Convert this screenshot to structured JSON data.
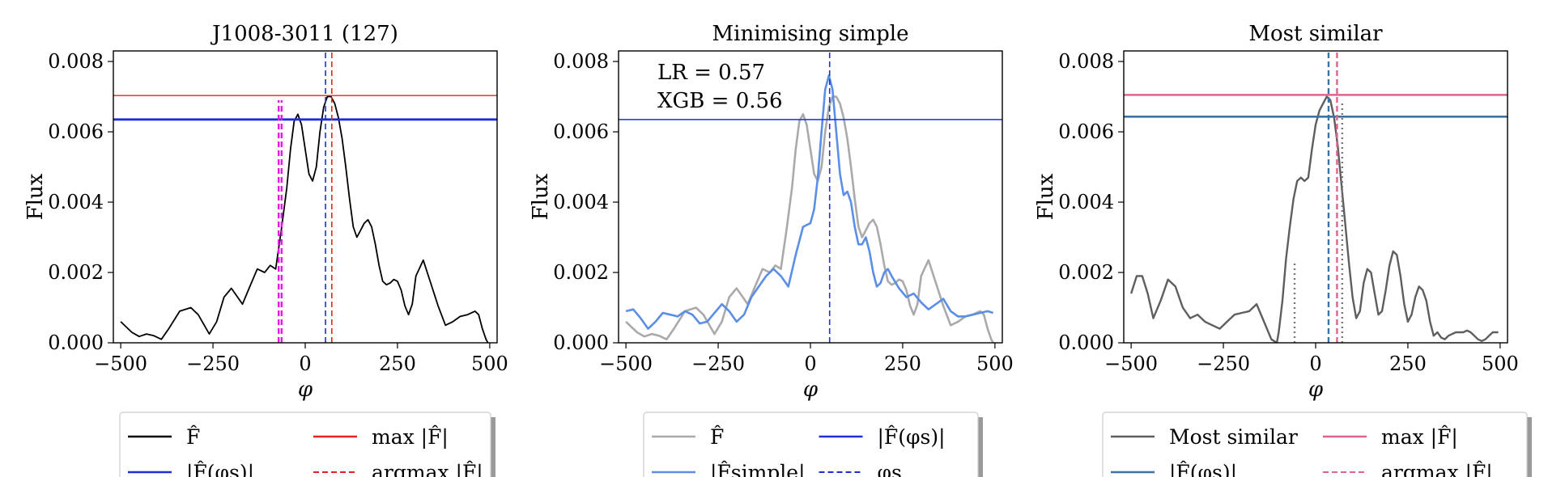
{
  "figure": {
    "panels": [
      {
        "title": "J1008-3011 (127)",
        "ylabel": "Flux",
        "xlabel": "φ",
        "annotations": [],
        "legend": {
          "items": [
            {
              "label": "F̂",
              "color": "#000000",
              "style": "solid"
            },
            {
              "label": "max |F̂|",
              "color": "#e8231f",
              "style": "solid"
            },
            {
              "label": "|F̂(φs)|",
              "color": "#1f2fd6",
              "style": "solid"
            },
            {
              "label": "argmax |F̂|",
              "color": "#e8231f",
              "style": "dashed"
            }
          ]
        }
      },
      {
        "title": "Minimising simple",
        "ylabel": "Flux",
        "xlabel": "φ",
        "annotations": [
          "LR = 0.57",
          "XGB = 0.56"
        ],
        "legend": {
          "items": [
            {
              "label": "F̂",
              "color": "#aaaaaa",
              "style": "solid"
            },
            {
              "label": "|F̂(φs)|",
              "color": "#1f2fd6",
              "style": "solid"
            },
            {
              "label": "|F̂simple|",
              "color": "#5b8ee6",
              "style": "solid"
            },
            {
              "label": "φs",
              "color": "#1f2fd6",
              "style": "dashed"
            }
          ]
        }
      },
      {
        "title": "Most similar",
        "ylabel": "Flux",
        "xlabel": "φ",
        "annotations": [],
        "legend": {
          "items": [
            {
              "label": "Most similar",
              "color": "#5e5e5e",
              "style": "solid"
            },
            {
              "label": "max |F̂|",
              "color": "#e0628e",
              "style": "solid"
            },
            {
              "label": "|F̂(φs)|",
              "color": "#3a73a8",
              "style": "solid"
            },
            {
              "label": "argmax |F̂|",
              "color": "#e0628e",
              "style": "dashed"
            }
          ]
        }
      }
    ]
  },
  "chart_data": [
    {
      "type": "line",
      "title": "J1008-3011 (127)",
      "xlabel": "φ",
      "ylabel": "Flux",
      "xlim": [
        -520,
        520
      ],
      "ylim": [
        0,
        0.0083
      ],
      "xticks": [
        -500,
        -250,
        0,
        250,
        500
      ],
      "xtick_labels": [
        "−500",
        "−250",
        "0",
        "250",
        "500"
      ],
      "yticks": [
        0,
        0.002,
        0.004,
        0.006,
        0.008
      ],
      "ytick_labels": [
        "0.000",
        "0.002",
        "0.004",
        "0.006",
        "0.008"
      ],
      "series": [
        {
          "name": "F̂",
          "color": "#000000",
          "width": 1.8,
          "x": [
            -500,
            -470,
            -450,
            -430,
            -410,
            -390,
            -370,
            -340,
            -310,
            -290,
            -260,
            -240,
            -220,
            -200,
            -190,
            -170,
            -150,
            -130,
            -110,
            -95,
            -80,
            -65,
            -50,
            -40,
            -30,
            -20,
            -10,
            0,
            10,
            20,
            30,
            40,
            50,
            60,
            70,
            80,
            90,
            100,
            110,
            120,
            130,
            140,
            150,
            160,
            170,
            180,
            190,
            200,
            210,
            220,
            230,
            240,
            250,
            260,
            270,
            280,
            290,
            300,
            320,
            340,
            360,
            380,
            400,
            420,
            440,
            460,
            470,
            480,
            490,
            495
          ],
          "y": [
            0.0006,
            0.0003,
            0.00018,
            0.00025,
            0.0002,
            0.0001,
            0.0004,
            0.0009,
            0.001,
            0.0008,
            0.00025,
            0.0006,
            0.0013,
            0.00155,
            0.0014,
            0.0011,
            0.0016,
            0.0021,
            0.002,
            0.0022,
            0.0021,
            0.0032,
            0.0044,
            0.0055,
            0.0063,
            0.0065,
            0.0062,
            0.0055,
            0.0048,
            0.0046,
            0.005,
            0.006,
            0.0067,
            0.007,
            0.007,
            0.0068,
            0.0064,
            0.0058,
            0.005,
            0.0041,
            0.0033,
            0.003,
            0.0032,
            0.0034,
            0.0035,
            0.0033,
            0.0028,
            0.0022,
            0.00175,
            0.00165,
            0.0017,
            0.0018,
            0.00175,
            0.0015,
            0.00105,
            0.0008,
            0.0011,
            0.0019,
            0.00235,
            0.0017,
            0.00105,
            0.0005,
            0.0006,
            0.00075,
            0.0008,
            0.0009,
            0.0008,
            0.0004,
            0.0001,
            0.0
          ]
        },
        {
          "name": "max |F̂|",
          "color": "#e8231f",
          "kind": "hline",
          "y": 0.00703,
          "width": 1.4
        },
        {
          "name": "|F̂(φs)|",
          "color": "#1f2fd6",
          "kind": "hline",
          "y": 0.00635,
          "width": 2.8
        },
        {
          "name": "argmax |F̂|",
          "color": "#e8231f",
          "kind": "vline",
          "x": 72,
          "dash": true,
          "width": 1.6
        },
        {
          "name": "φs",
          "color": "#1f2fd6",
          "kind": "vline",
          "x": 55,
          "dash": true,
          "width": 1.6
        },
        {
          "name": "",
          "color": "#e619e6",
          "kind": "vline",
          "x": -72,
          "dash": true,
          "width": 2.4,
          "ymax": 0.0069
        },
        {
          "name": "",
          "color": "#e619e6",
          "kind": "vline",
          "x": -64,
          "dash": true,
          "width": 2.4,
          "ymax": 0.0069
        }
      ]
    },
    {
      "type": "line",
      "title": "Minimising simple",
      "xlabel": "φ",
      "ylabel": "Flux",
      "xlim": [
        -520,
        520
      ],
      "ylim": [
        0,
        0.0083
      ],
      "xticks": [
        -500,
        -250,
        0,
        250,
        500
      ],
      "xtick_labels": [
        "−500",
        "−250",
        "0",
        "250",
        "500"
      ],
      "yticks": [
        0,
        0.002,
        0.004,
        0.006,
        0.008
      ],
      "ytick_labels": [
        "0.000",
        "0.002",
        "0.004",
        "0.006",
        "0.008"
      ],
      "series": [
        {
          "name": "F̂",
          "color": "#aaaaaa",
          "width": 2.6,
          "x": [
            -500,
            -470,
            -450,
            -430,
            -410,
            -390,
            -370,
            -340,
            -310,
            -290,
            -260,
            -240,
            -220,
            -200,
            -190,
            -170,
            -150,
            -130,
            -110,
            -95,
            -80,
            -65,
            -50,
            -40,
            -30,
            -20,
            -10,
            0,
            10,
            20,
            30,
            40,
            50,
            60,
            70,
            80,
            90,
            100,
            110,
            120,
            130,
            140,
            150,
            160,
            170,
            180,
            190,
            200,
            210,
            220,
            230,
            240,
            250,
            260,
            270,
            280,
            290,
            300,
            320,
            340,
            360,
            380,
            400,
            420,
            440,
            460,
            470,
            480,
            490,
            495
          ],
          "y": [
            0.0006,
            0.0003,
            0.00018,
            0.00025,
            0.0002,
            0.0001,
            0.0004,
            0.0009,
            0.001,
            0.0008,
            0.00025,
            0.0006,
            0.0013,
            0.00155,
            0.0014,
            0.0011,
            0.0016,
            0.0021,
            0.002,
            0.0022,
            0.0021,
            0.0032,
            0.0044,
            0.0055,
            0.0063,
            0.0065,
            0.0062,
            0.0055,
            0.0048,
            0.0046,
            0.005,
            0.006,
            0.0067,
            0.007,
            0.007,
            0.0068,
            0.0064,
            0.0058,
            0.005,
            0.0041,
            0.0033,
            0.003,
            0.0032,
            0.0034,
            0.0035,
            0.0033,
            0.0028,
            0.0022,
            0.00175,
            0.00165,
            0.0017,
            0.0018,
            0.00175,
            0.0015,
            0.00105,
            0.0008,
            0.0011,
            0.0019,
            0.00235,
            0.0017,
            0.00105,
            0.0005,
            0.0006,
            0.00075,
            0.0008,
            0.0009,
            0.0008,
            0.0004,
            0.0001,
            0.0
          ]
        },
        {
          "name": "|F̂simple|",
          "color": "#5b8ee6",
          "width": 2.6,
          "x": [
            -500,
            -480,
            -460,
            -440,
            -420,
            -400,
            -380,
            -360,
            -340,
            -320,
            -300,
            -280,
            -260,
            -240,
            -220,
            -200,
            -180,
            -160,
            -140,
            -120,
            -100,
            -80,
            -60,
            -40,
            -20,
            0,
            10,
            20,
            30,
            40,
            50,
            60,
            70,
            80,
            90,
            100,
            110,
            120,
            130,
            140,
            150,
            160,
            170,
            180,
            190,
            200,
            210,
            220,
            240,
            260,
            280,
            300,
            320,
            340,
            360,
            380,
            400,
            420,
            440,
            460,
            480,
            495
          ],
          "y": [
            0.0009,
            0.00095,
            0.0007,
            0.0004,
            0.0006,
            0.00085,
            0.0008,
            0.00075,
            0.0009,
            0.0008,
            0.00055,
            0.0006,
            0.00085,
            0.0011,
            0.0009,
            0.0006,
            0.0008,
            0.0013,
            0.0016,
            0.0019,
            0.0021,
            0.0019,
            0.0016,
            0.0025,
            0.0033,
            0.0034,
            0.0038,
            0.0047,
            0.006,
            0.0072,
            0.0076,
            0.0072,
            0.006,
            0.0048,
            0.0042,
            0.0043,
            0.004,
            0.0033,
            0.0028,
            0.0028,
            0.003,
            0.0026,
            0.002,
            0.0016,
            0.0017,
            0.002,
            0.0021,
            0.0019,
            0.00155,
            0.0013,
            0.0014,
            0.00115,
            0.00095,
            0.0011,
            0.00125,
            0.0009,
            0.00075,
            0.00075,
            0.0008,
            0.00085,
            0.0009,
            0.00085
          ]
        },
        {
          "name": "|F̂(φs)|",
          "color": "#1f2fd6",
          "kind": "hline",
          "y": 0.00635,
          "width": 1.5
        },
        {
          "name": "φs",
          "color": "#1f2fd6",
          "kind": "vline",
          "x": 52,
          "dash": true,
          "width": 1.6
        }
      ]
    },
    {
      "type": "line",
      "title": "Most similar",
      "xlabel": "φ",
      "ylabel": "Flux",
      "xlim": [
        -520,
        520
      ],
      "ylim": [
        0,
        0.0083
      ],
      "xticks": [
        -500,
        -250,
        0,
        250,
        500
      ],
      "xtick_labels": [
        "−500",
        "−250",
        "0",
        "250",
        "500"
      ],
      "yticks": [
        0,
        0.002,
        0.004,
        0.006,
        0.008
      ],
      "ytick_labels": [
        "0.000",
        "0.002",
        "0.004",
        "0.006",
        "0.008"
      ],
      "series": [
        {
          "name": "Most similar",
          "color": "#5e5e5e",
          "width": 2.4,
          "x": [
            -500,
            -485,
            -470,
            -455,
            -440,
            -420,
            -400,
            -380,
            -360,
            -340,
            -320,
            -300,
            -280,
            -260,
            -240,
            -220,
            -200,
            -180,
            -160,
            -140,
            -120,
            -105,
            -100,
            -90,
            -80,
            -70,
            -60,
            -50,
            -40,
            -30,
            -20,
            -10,
            0,
            10,
            20,
            30,
            40,
            50,
            60,
            70,
            80,
            90,
            100,
            110,
            120,
            130,
            140,
            150,
            160,
            170,
            180,
            190,
            200,
            210,
            220,
            230,
            240,
            250,
            260,
            270,
            280,
            290,
            300,
            310,
            320,
            330,
            340,
            350,
            360,
            370,
            380,
            390,
            400,
            410,
            420,
            430,
            440,
            450,
            460,
            470,
            480,
            490,
            495
          ],
          "y": [
            0.0014,
            0.0019,
            0.0019,
            0.0014,
            0.0007,
            0.0012,
            0.0018,
            0.0016,
            0.001,
            0.0007,
            0.0008,
            0.0006,
            0.0005,
            0.0004,
            0.0006,
            0.0008,
            0.00085,
            0.0009,
            0.0011,
            0.0006,
            0.0001,
            0.0,
            0.0003,
            0.0012,
            0.0024,
            0.0033,
            0.0041,
            0.0046,
            0.0047,
            0.0046,
            0.0047,
            0.0055,
            0.0062,
            0.0066,
            0.0068,
            0.007,
            0.0069,
            0.0064,
            0.0056,
            0.0045,
            0.0034,
            0.0023,
            0.0013,
            0.0007,
            0.0009,
            0.0017,
            0.0021,
            0.002,
            0.0014,
            0.0008,
            0.0009,
            0.0015,
            0.0022,
            0.0026,
            0.0025,
            0.0019,
            0.0011,
            0.0006,
            0.0008,
            0.0013,
            0.0016,
            0.0015,
            0.0012,
            0.0006,
            0.0002,
            0.0003,
            0.00015,
            0.0001,
            0.0002,
            0.00025,
            0.0003,
            0.0003,
            0.0003,
            0.00035,
            0.0003,
            0.0002,
            0.0001,
            5e-05,
            0.0001,
            0.0002,
            0.0003,
            0.0003,
            0.0003
          ]
        },
        {
          "name": "max |F̂|",
          "color": "#e0628e",
          "kind": "hline",
          "y": 0.00705,
          "width": 2.6
        },
        {
          "name": "|F̂(φs)|",
          "color": "#3a73a8",
          "kind": "hline",
          "y": 0.00643,
          "width": 2.6
        },
        {
          "name": "argmax |F̂|",
          "color": "#e0628e",
          "kind": "vline",
          "x": 58,
          "dash": true,
          "width": 2.4
        },
        {
          "name": "φs",
          "color": "#3a73a8",
          "kind": "vline",
          "x": 35,
          "dash": true,
          "width": 2.4
        },
        {
          "name": "",
          "color": "#777777",
          "kind": "vline",
          "x": -57,
          "dot": true,
          "width": 2.4,
          "ymax": 0.0023
        },
        {
          "name": "",
          "color": "#777777",
          "kind": "vline",
          "x": 72,
          "dot": true,
          "width": 2.4,
          "ymax": 0.0069
        }
      ]
    }
  ]
}
